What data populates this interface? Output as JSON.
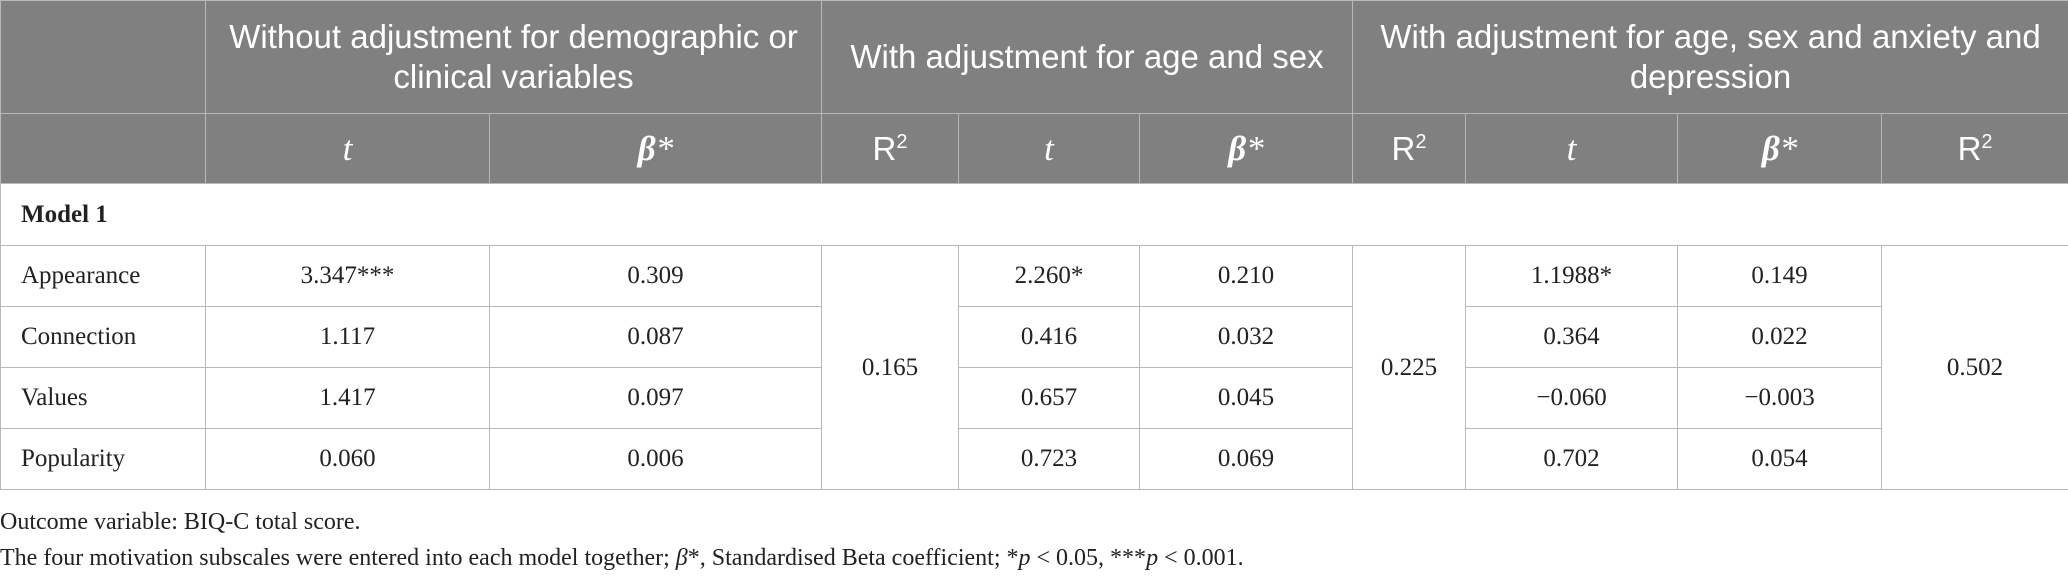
{
  "table": {
    "group_headers": [
      "Without adjustment for demographic or clinical variables",
      "With adjustment for age and sex",
      "With adjustment for age, sex and anxiety and depression"
    ],
    "sub_headers": {
      "t": "t",
      "beta": "β",
      "beta_suffix": "*",
      "r2": "R",
      "r2_sup": "2"
    },
    "section_title": "Model 1",
    "rows": [
      {
        "label": "Appearance",
        "t1": "3.347***",
        "b1": "0.309",
        "t2": "2.260*",
        "b2": "0.210",
        "t3": "1.1988*",
        "b3": "0.149"
      },
      {
        "label": "Connection",
        "t1": "1.117",
        "b1": "0.087",
        "t2": "0.416",
        "b2": "0.032",
        "t3": "0.364",
        "b3": "0.022"
      },
      {
        "label": "Values",
        "t1": "1.417",
        "b1": "0.097",
        "t2": "0.657",
        "b2": "0.045",
        "t3": "−0.060",
        "b3": "−0.003"
      },
      {
        "label": "Popularity",
        "t1": "0.060",
        "b1": "0.006",
        "t2": "0.723",
        "b2": "0.069",
        "t3": "0.702",
        "b3": "0.054"
      }
    ],
    "r2_values": [
      "0.165",
      "0.225",
      "0.502"
    ]
  },
  "footnotes": {
    "line1": "Outcome variable: BIQ-C total score.",
    "line2_pre": "The four motivation subscales were entered into each model together; ",
    "line2_beta": "β",
    "line2_mid": "*, Standardised Beta coefficient; *",
    "line2_p1": "p",
    "line2_mid2": " < 0.05, ***",
    "line2_p2": "p",
    "line2_end": " < 0.001."
  },
  "colors": {
    "header_bg": "#808080",
    "header_text": "#ffffff",
    "border": "#b8b8b8"
  }
}
